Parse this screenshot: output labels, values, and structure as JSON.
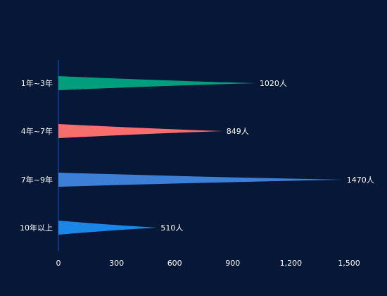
{
  "theme": {
    "background": "#061737",
    "axis_color": "#1f4fb0",
    "text_color": "#ffffff"
  },
  "chart_data": {
    "type": "bar",
    "orientation": "horizontal",
    "bar_shape": "tapered-spike",
    "categories": [
      "1年~3年",
      "4年~7年",
      "7年~9年",
      "10年以上"
    ],
    "values": [
      1020,
      849,
      1470,
      510
    ],
    "value_labels": [
      "1020人",
      "849人",
      "1470人",
      "510人"
    ],
    "colors": [
      "#009e7d",
      "#f96d6d",
      "#3d7fd6",
      "#1a86e6"
    ],
    "xlim": [
      0,
      1500
    ],
    "x_ticks": [
      0,
      300,
      600,
      900,
      1200,
      1500
    ],
    "x_tick_labels": [
      "0",
      "300",
      "600",
      "900",
      "1,200",
      "1,500"
    ],
    "grid": false,
    "legend": "none"
  }
}
